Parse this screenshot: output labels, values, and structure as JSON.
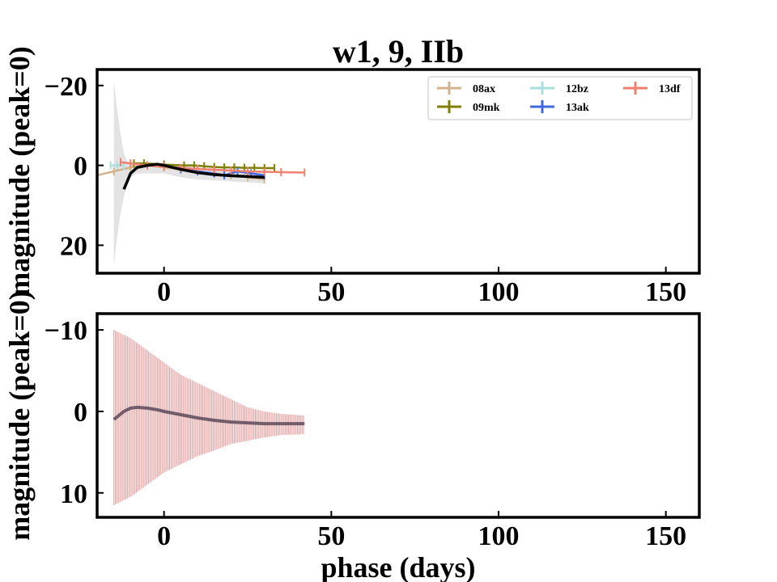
{
  "title": "w1, 9, IIb",
  "xlabel": "phase (days)",
  "colors": {
    "08ax": "#d2b48c",
    "09mk": "#808000",
    "12bz": "#a8dede",
    "13ak": "#4169e1",
    "13df": "#f08070",
    "template": "#000000",
    "template_band": "#cccccc",
    "mean": "#5a4a5a",
    "spread": "#e08a8a"
  },
  "chart_data": [
    {
      "type": "line",
      "panel": "top",
      "ylabel": "magnitude (peak=0)",
      "xlim": [
        -20,
        160
      ],
      "ylim": [
        27,
        -24
      ],
      "y_inverted": true,
      "xticks": [
        0,
        50,
        100,
        150
      ],
      "yticks": [
        -20,
        0,
        20
      ],
      "ytick_labels": [
        "−20",
        "0",
        "20"
      ],
      "legend_position": "upper right",
      "series": [
        {
          "name": "08ax",
          "x": [
            -20,
            -15,
            -10,
            -5,
            0,
            5,
            10,
            15,
            20,
            25,
            30
          ],
          "y": [
            2.5,
            1.5,
            0.5,
            0.0,
            0.5,
            1.0,
            1.5,
            2.0,
            2.5,
            3.0,
            3.5
          ]
        },
        {
          "name": "09mk",
          "x": [
            -9,
            -6,
            0,
            6,
            9,
            12,
            15,
            18,
            21,
            24,
            27,
            30,
            33
          ],
          "y": [
            -0.5,
            -0.5,
            -0.2,
            0.0,
            0.0,
            0.2,
            0.4,
            0.5,
            0.5,
            0.6,
            0.6,
            0.7,
            0.7
          ]
        },
        {
          "name": "12bz",
          "x": [
            -16,
            -14,
            -12
          ],
          "y": [
            0.0,
            0.0,
            0.1
          ]
        },
        {
          "name": "13ak",
          "x": [
            5,
            10,
            15,
            18,
            22,
            26,
            30
          ],
          "y": [
            1.0,
            1.5,
            2.0,
            2.5,
            1.5,
            2.0,
            2.5
          ]
        },
        {
          "name": "13df",
          "x": [
            -13,
            -10,
            -5,
            0,
            5,
            10,
            15,
            20,
            25,
            30,
            35,
            42
          ],
          "y": [
            -0.8,
            -0.5,
            0.0,
            0.3,
            0.6,
            0.9,
            1.1,
            1.3,
            1.5,
            1.6,
            1.7,
            1.8
          ]
        }
      ],
      "template": {
        "x": [
          -12,
          -11,
          -10,
          -8,
          -5,
          -2,
          0,
          5,
          10,
          15,
          20,
          25,
          30
        ],
        "y": [
          6.0,
          4.0,
          2.0,
          0.5,
          0.0,
          -0.3,
          0.0,
          1.0,
          1.8,
          2.3,
          2.6,
          2.8,
          3.0
        ],
        "band_x": [
          -15,
          -14,
          -13,
          -12,
          -11,
          -10,
          -8,
          -5,
          0,
          5,
          10,
          20,
          30
        ],
        "band_lo": [
          -21,
          -14,
          -8,
          -3,
          -1,
          -0.5,
          -0.5,
          -0.8,
          -0.5,
          0.0,
          0.5,
          1.0,
          1.5
        ],
        "band_hi": [
          25,
          18,
          12,
          8,
          4,
          3,
          2,
          2,
          2,
          3,
          3.5,
          4,
          4.5
        ]
      }
    },
    {
      "type": "line",
      "panel": "bottom",
      "ylabel": "magnitude (peak=0)",
      "xlim": [
        -20,
        160
      ],
      "ylim": [
        13,
        -12
      ],
      "y_inverted": true,
      "xticks": [
        0,
        50,
        100,
        150
      ],
      "yticks": [
        -10,
        0,
        10
      ],
      "ytick_labels": [
        "−10",
        "0",
        "10"
      ],
      "series": [
        {
          "name": "mean",
          "x": [
            -15,
            -12,
            -10,
            -8,
            -5,
            -2,
            0,
            5,
            10,
            15,
            20,
            25,
            30,
            35,
            42
          ],
          "y": [
            1.0,
            0.0,
            -0.4,
            -0.5,
            -0.4,
            -0.2,
            0.0,
            0.4,
            0.8,
            1.1,
            1.3,
            1.4,
            1.5,
            1.5,
            1.5
          ]
        },
        {
          "name": "spread",
          "x": [
            -15,
            -10,
            -5,
            0,
            5,
            10,
            15,
            20,
            25,
            30,
            35,
            42
          ],
          "lo": [
            -10.0,
            -9.0,
            -7.5,
            -6.0,
            -4.5,
            -3.5,
            -2.5,
            -1.5,
            -0.5,
            0.0,
            0.3,
            0.5
          ],
          "hi": [
            11.5,
            10.5,
            9.0,
            7.5,
            6.5,
            5.5,
            4.8,
            4.0,
            3.6,
            3.2,
            2.9,
            2.8
          ]
        }
      ]
    }
  ]
}
